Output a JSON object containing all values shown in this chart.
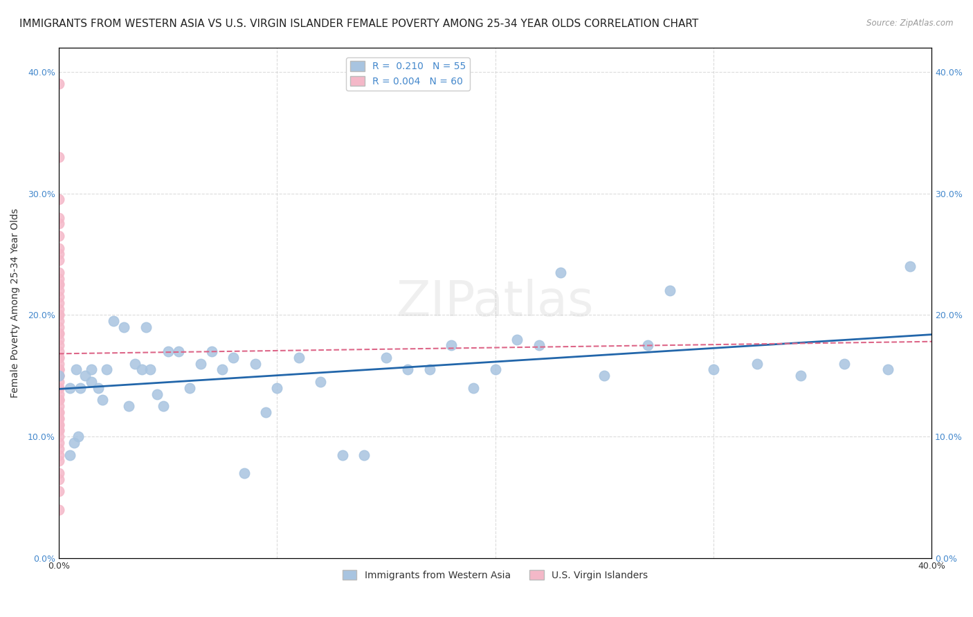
{
  "title": "IMMIGRANTS FROM WESTERN ASIA VS U.S. VIRGIN ISLANDER FEMALE POVERTY AMONG 25-34 YEAR OLDS CORRELATION CHART",
  "source": "Source: ZipAtlas.com",
  "ylabel": "Female Poverty Among 25-34 Year Olds",
  "xlim": [
    0.0,
    0.4
  ],
  "ylim": [
    0.0,
    0.42
  ],
  "ytick_labels": [
    "0.0%",
    "10.0%",
    "20.0%",
    "30.0%",
    "40.0%"
  ],
  "ytick_vals": [
    0.0,
    0.1,
    0.2,
    0.3,
    0.4
  ],
  "xtick_vals": [
    0.0,
    0.1,
    0.2,
    0.3,
    0.4
  ],
  "blue_R": "0.210",
  "blue_N": "55",
  "pink_R": "0.004",
  "pink_N": "60",
  "blue_color": "#a8c4e0",
  "pink_color": "#f4b8c8",
  "blue_line_color": "#2266aa",
  "pink_line_color": "#dd6688",
  "blue_x": [
    0.0,
    0.005,
    0.008,
    0.01,
    0.012,
    0.015,
    0.015,
    0.018,
    0.02,
    0.022,
    0.025,
    0.03,
    0.032,
    0.035,
    0.038,
    0.04,
    0.042,
    0.045,
    0.048,
    0.05,
    0.055,
    0.06,
    0.065,
    0.07,
    0.075,
    0.08,
    0.085,
    0.09,
    0.095,
    0.1,
    0.11,
    0.12,
    0.13,
    0.14,
    0.15,
    0.16,
    0.17,
    0.18,
    0.19,
    0.2,
    0.21,
    0.22,
    0.23,
    0.25,
    0.27,
    0.28,
    0.3,
    0.32,
    0.34,
    0.36,
    0.38,
    0.39,
    0.005,
    0.007,
    0.009
  ],
  "blue_y": [
    0.15,
    0.14,
    0.155,
    0.14,
    0.15,
    0.145,
    0.155,
    0.14,
    0.13,
    0.155,
    0.195,
    0.19,
    0.125,
    0.16,
    0.155,
    0.19,
    0.155,
    0.135,
    0.125,
    0.17,
    0.17,
    0.14,
    0.16,
    0.17,
    0.155,
    0.165,
    0.07,
    0.16,
    0.12,
    0.14,
    0.165,
    0.145,
    0.085,
    0.085,
    0.165,
    0.155,
    0.155,
    0.175,
    0.14,
    0.155,
    0.18,
    0.175,
    0.235,
    0.15,
    0.175,
    0.22,
    0.155,
    0.16,
    0.15,
    0.16,
    0.155,
    0.24,
    0.085,
    0.095,
    0.1
  ],
  "pink_x": [
    0.0,
    0.0,
    0.0,
    0.0,
    0.0,
    0.0,
    0.0,
    0.0,
    0.0,
    0.0,
    0.0,
    0.0,
    0.0,
    0.0,
    0.0,
    0.0,
    0.0,
    0.0,
    0.0,
    0.0,
    0.0,
    0.0,
    0.0,
    0.0,
    0.0,
    0.0,
    0.0,
    0.0,
    0.0,
    0.0,
    0.0,
    0.0,
    0.0,
    0.0,
    0.0,
    0.0,
    0.0,
    0.0,
    0.0,
    0.0,
    0.0,
    0.0,
    0.0,
    0.0,
    0.0,
    0.0,
    0.0,
    0.0,
    0.0,
    0.0,
    0.0,
    0.0,
    0.0,
    0.0,
    0.0,
    0.0,
    0.0,
    0.0,
    0.0,
    0.0
  ],
  "pink_y": [
    0.39,
    0.33,
    0.295,
    0.28,
    0.275,
    0.265,
    0.255,
    0.25,
    0.245,
    0.235,
    0.23,
    0.225,
    0.225,
    0.22,
    0.215,
    0.21,
    0.205,
    0.2,
    0.2,
    0.195,
    0.19,
    0.185,
    0.185,
    0.18,
    0.175,
    0.17,
    0.165,
    0.165,
    0.16,
    0.155,
    0.155,
    0.155,
    0.15,
    0.15,
    0.15,
    0.145,
    0.14,
    0.14,
    0.135,
    0.13,
    0.13,
    0.13,
    0.125,
    0.12,
    0.12,
    0.115,
    0.115,
    0.11,
    0.11,
    0.105,
    0.105,
    0.1,
    0.095,
    0.09,
    0.085,
    0.08,
    0.07,
    0.065,
    0.055,
    0.04
  ],
  "pink_line_y_start": 0.195,
  "pink_line_y_end": 0.205,
  "blue_line_y_start": 0.135,
  "blue_line_y_end": 0.185,
  "watermark": "ZIPatlas",
  "background_color": "#ffffff",
  "grid_color": "#cccccc",
  "title_fontsize": 11,
  "axis_label_fontsize": 10,
  "tick_fontsize": 9,
  "legend_fontsize": 10
}
